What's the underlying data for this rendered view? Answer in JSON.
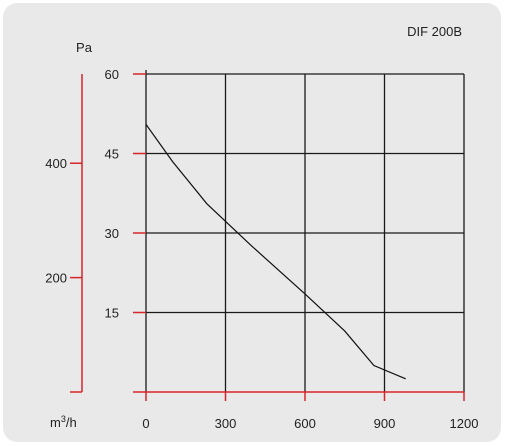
{
  "chart_data": {
    "type": "line",
    "title": "DIF 200B",
    "xlabel_base": "m",
    "xlabel_sup": "3",
    "xlabel_suffix": "/h",
    "y_unit": "Pa",
    "xlim": [
      0,
      1200
    ],
    "ylim": [
      0,
      60
    ],
    "x_ticks": [
      "0",
      "300",
      "600",
      "900",
      "1200"
    ],
    "y_ticks": [
      "15",
      "30",
      "45",
      "60"
    ],
    "y2_ticks": [
      "400",
      "200"
    ],
    "grid": true,
    "series": [
      {
        "x": [
          0,
          100,
          230,
          400,
          600,
          750,
          860,
          980
        ],
        "y": [
          50.5,
          43.5,
          35.5,
          27.5,
          18.5,
          11.5,
          5,
          2.5
        ]
      }
    ],
    "colors": {
      "accent": "#d7262a",
      "line": "#111111",
      "background": "#e9e9e9"
    }
  }
}
